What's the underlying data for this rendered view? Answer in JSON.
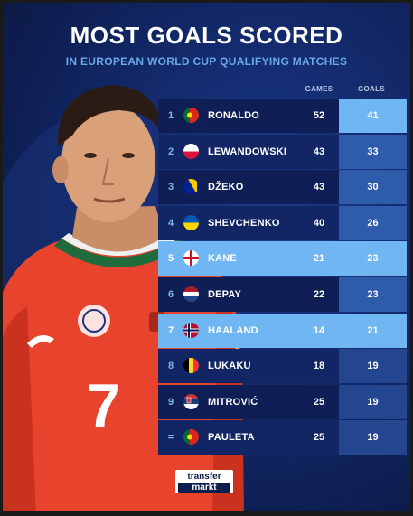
{
  "header": {
    "title": "MOST GOALS SCORED",
    "subtitle": "IN EUROPEAN WORLD CUP QUALIFYING MATCHES"
  },
  "table": {
    "columns": [
      "GAMES",
      "GOALS"
    ],
    "rows": [
      {
        "rank": "1",
        "name": "RONALDO",
        "games": "52",
        "goals": "41",
        "flag": "portugal-flag-icon"
      },
      {
        "rank": "2",
        "name": "LEWANDOWSKI",
        "games": "43",
        "goals": "33",
        "flag": "poland-flag-icon"
      },
      {
        "rank": "3",
        "name": "DŽEKO",
        "games": "43",
        "goals": "30",
        "flag": "bosnia-flag-icon"
      },
      {
        "rank": "4",
        "name": "SHEVCHENKO",
        "games": "40",
        "goals": "26",
        "flag": "ukraine-flag-icon"
      },
      {
        "rank": "5",
        "name": "KANE",
        "games": "21",
        "goals": "23",
        "flag": "england-flag-icon"
      },
      {
        "rank": "6",
        "name": "DEPAY",
        "games": "22",
        "goals": "23",
        "flag": "netherlands-flag-icon"
      },
      {
        "rank": "7",
        "name": "HAALAND",
        "games": "14",
        "goals": "21",
        "flag": "norway-flag-icon"
      },
      {
        "rank": "8",
        "name": "LUKAKU",
        "games": "18",
        "goals": "19",
        "flag": "belgium-flag-icon"
      },
      {
        "rank": "9",
        "name": "MITROVIĆ",
        "games": "25",
        "goals": "19",
        "flag": "serbia-flag-icon"
      },
      {
        "rank": "=",
        "name": "PAULETA",
        "games": "25",
        "goals": "19",
        "flag": "portugal-flag-icon"
      }
    ]
  },
  "logo": {
    "line1": "transfer",
    "line2": "markt"
  },
  "player": {
    "shirt_number": "7"
  },
  "colors": {
    "background": "#132a6c",
    "highlight": "#6fb6f2",
    "subtitle": "#6aa8e8",
    "shirt": "#e8432d"
  }
}
